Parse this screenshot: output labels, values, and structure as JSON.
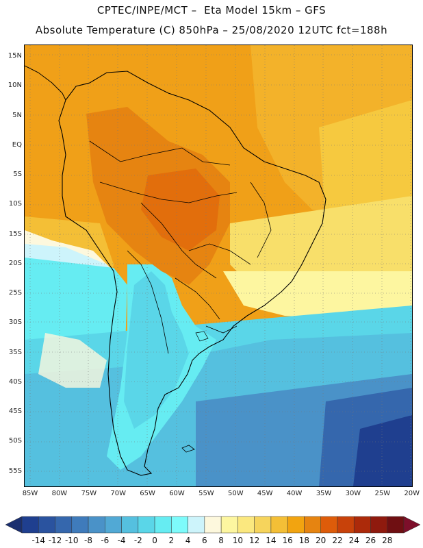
{
  "header": {
    "title_line1": "CPTEC/INPE/MCT –  Eta Model 15km – GFS",
    "title_line2": "Absolute Temperature (C) 850hPa – 25/08/2020 12UTC fct=188h"
  },
  "lat_labels": [
    "15N",
    "10N",
    "5N",
    "EQ",
    "5S",
    "10S",
    "15S",
    "20S",
    "25S",
    "30S",
    "35S",
    "40S",
    "45S",
    "50S",
    "55S"
  ],
  "lon_labels": [
    "85W",
    "80W",
    "75W",
    "70W",
    "65W",
    "60W",
    "55W",
    "50W",
    "45W",
    "40W",
    "35W",
    "30W",
    "25W",
    "20W"
  ],
  "colorbar": {
    "labels": [
      "-14",
      "-12",
      "-10",
      "-8",
      "-6",
      "-4",
      "-2",
      "0",
      "2",
      "4",
      "6",
      "8",
      "10",
      "12",
      "14",
      "16",
      "18",
      "20",
      "22",
      "24",
      "26",
      "28"
    ],
    "colors": [
      "#1f3f8f",
      "#2a539f",
      "#3567ad",
      "#3f7bbb",
      "#4a92c8",
      "#51a9d5",
      "#55c0df",
      "#5ad6e8",
      "#66ecf2",
      "#7dfbfb",
      "#cdf4fb",
      "#fdf8dd",
      "#fdf6a0",
      "#fbe87f",
      "#f6d45c",
      "#f4bf36",
      "#f2a410",
      "#e68411",
      "#de5c0a",
      "#c8420a",
      "#ac2a0a",
      "#8f1a0e",
      "#6f0f12"
    ],
    "low_end_color": "#1a2f70",
    "high_end_color": "#7d0f2a"
  }
}
